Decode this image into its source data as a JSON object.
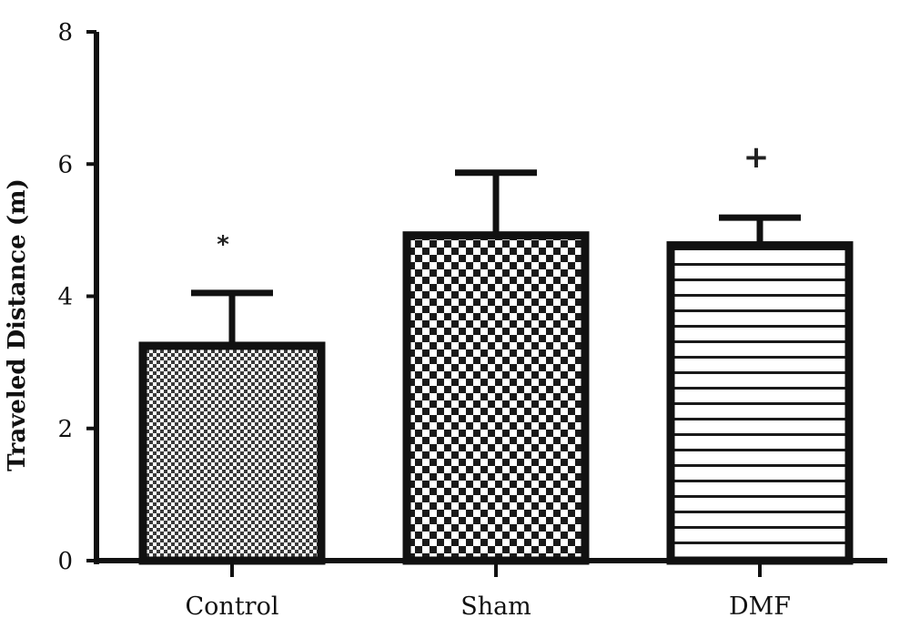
{
  "chart_data": {
    "type": "bar",
    "title": "",
    "xlabel": "",
    "ylabel": "Traveled Distance (m)",
    "ylim": [
      0,
      8
    ],
    "yticks": [
      0,
      2,
      4,
      6,
      8
    ],
    "grid": false,
    "categories": [
      "Control",
      "Sham",
      "DMF"
    ],
    "values": [
      3.25,
      4.92,
      4.77
    ],
    "errors": [
      0.8,
      0.95,
      0.42
    ],
    "annotations": [
      "*",
      "",
      "+"
    ],
    "fill_patterns": [
      "fine-checker",
      "coarse-checker",
      "horizontal-stripes"
    ],
    "colors": {
      "bar_outline": "#111111",
      "pattern_dark": "#1a1a1a",
      "pattern_light": "#ffffff"
    }
  }
}
